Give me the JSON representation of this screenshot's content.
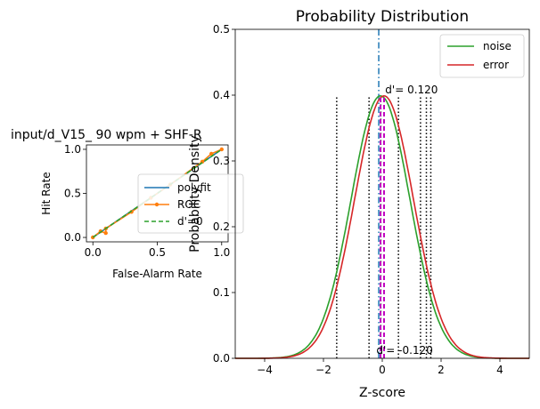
{
  "chart_data": [
    {
      "type": "line",
      "title": "input/d_V15_ 90 wpm + SHF-R",
      "xlabel": "False-Alarm Rate",
      "ylabel": "Hit Rate",
      "xlim": [
        -0.05,
        1.05
      ],
      "ylim": [
        -0.05,
        1.05
      ],
      "x_ticks": [
        0.0,
        0.5,
        1.0
      ],
      "x_tick_labels": [
        "0.0",
        "0.5",
        "1.0"
      ],
      "y_ticks": [
        0.0,
        0.5,
        1.0
      ],
      "y_tick_labels": [
        "0.0",
        "0.5",
        "1.0"
      ],
      "legend": {
        "position": "right",
        "entries": [
          "polyfit",
          "ROC",
          "d'=0"
        ]
      },
      "series": [
        {
          "name": "polyfit",
          "style": "solid",
          "color": "#1f77b4",
          "x": [
            0.0,
            1.0
          ],
          "y": [
            0.0,
            1.0
          ]
        },
        {
          "name": "ROC",
          "style": "line-dot",
          "color": "#ff7f0e",
          "x": [
            0.0,
            0.06,
            0.1,
            0.1,
            0.3,
            0.45,
            0.6,
            0.85,
            0.92,
            1.0
          ],
          "y": [
            0.0,
            0.07,
            0.05,
            0.1,
            0.29,
            0.45,
            0.6,
            0.86,
            0.95,
            1.0
          ]
        },
        {
          "name": "d'=0",
          "style": "dashed",
          "color": "#2ca02c",
          "x": [
            0.0,
            1.0
          ],
          "y": [
            0.0,
            1.0
          ]
        }
      ]
    },
    {
      "type": "line",
      "title": "Probability Distribution",
      "xlabel": "Z-score",
      "ylabel": "Probability Density",
      "xlim": [
        -5,
        5
      ],
      "ylim": [
        0,
        0.5
      ],
      "x_ticks": [
        -4,
        -2,
        0,
        2,
        4
      ],
      "x_tick_labels": [
        "−4",
        "−2",
        "0",
        "2",
        "4"
      ],
      "y_ticks": [
        0.0,
        0.1,
        0.2,
        0.3,
        0.4,
        0.5
      ],
      "y_tick_labels": [
        "0.0",
        "0.1",
        "0.2",
        "0.3",
        "0.4",
        "0.5"
      ],
      "legend": {
        "position": "top-right",
        "entries": [
          "noise",
          "error"
        ]
      },
      "series": [
        {
          "name": "noise",
          "color": "#2ca02c",
          "distribution": "normal",
          "mean": -0.06,
          "sd": 1.0
        },
        {
          "name": "error",
          "color": "#d62728",
          "distribution": "normal",
          "mean": 0.06,
          "sd": 1.0
        }
      ],
      "criterion_lines": {
        "color": "#000000",
        "style": "dotted",
        "height": 0.4,
        "x": [
          -1.55,
          -0.45,
          -0.05,
          0.55,
          1.3,
          1.5,
          1.65
        ]
      },
      "mean_lines": {
        "color": "#c000c0",
        "style": "dashed",
        "height": 0.4,
        "x": [
          -0.06,
          0.06
        ]
      },
      "center_lines": {
        "color": "#1f77b4",
        "style": "dashdot",
        "x": -0.12
      },
      "annotations": [
        {
          "text": "d'= 0.120",
          "x": 0.1,
          "y": 0.403
        },
        {
          "text": "d'= -0.120",
          "x": -0.2,
          "y": 0.007
        }
      ]
    }
  ]
}
